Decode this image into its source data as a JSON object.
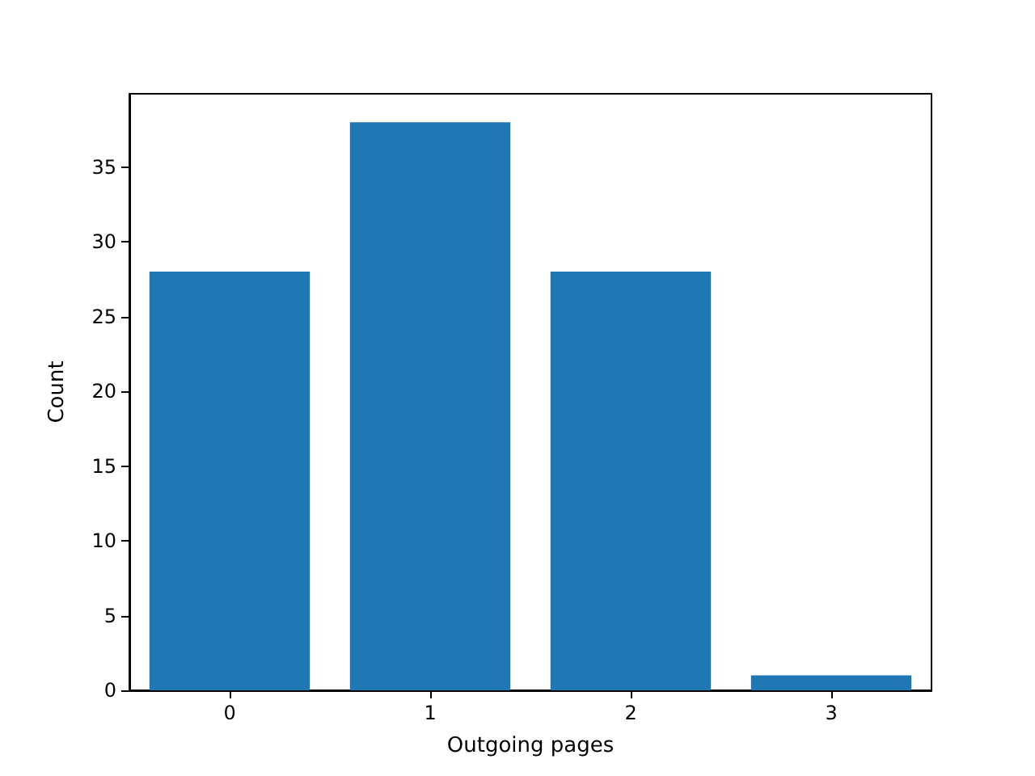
{
  "chart_data": {
    "type": "bar",
    "xlabel": "Outgoing pages",
    "ylabel": "Count",
    "categories": [
      "0",
      "1",
      "2",
      "3"
    ],
    "values": [
      28,
      38,
      28,
      1
    ],
    "color": "#1f77b4",
    "ylim": [
      0,
      39.9
    ],
    "yticks": [
      0,
      5,
      10,
      15,
      20,
      25,
      30,
      35
    ],
    "grid": false
  }
}
